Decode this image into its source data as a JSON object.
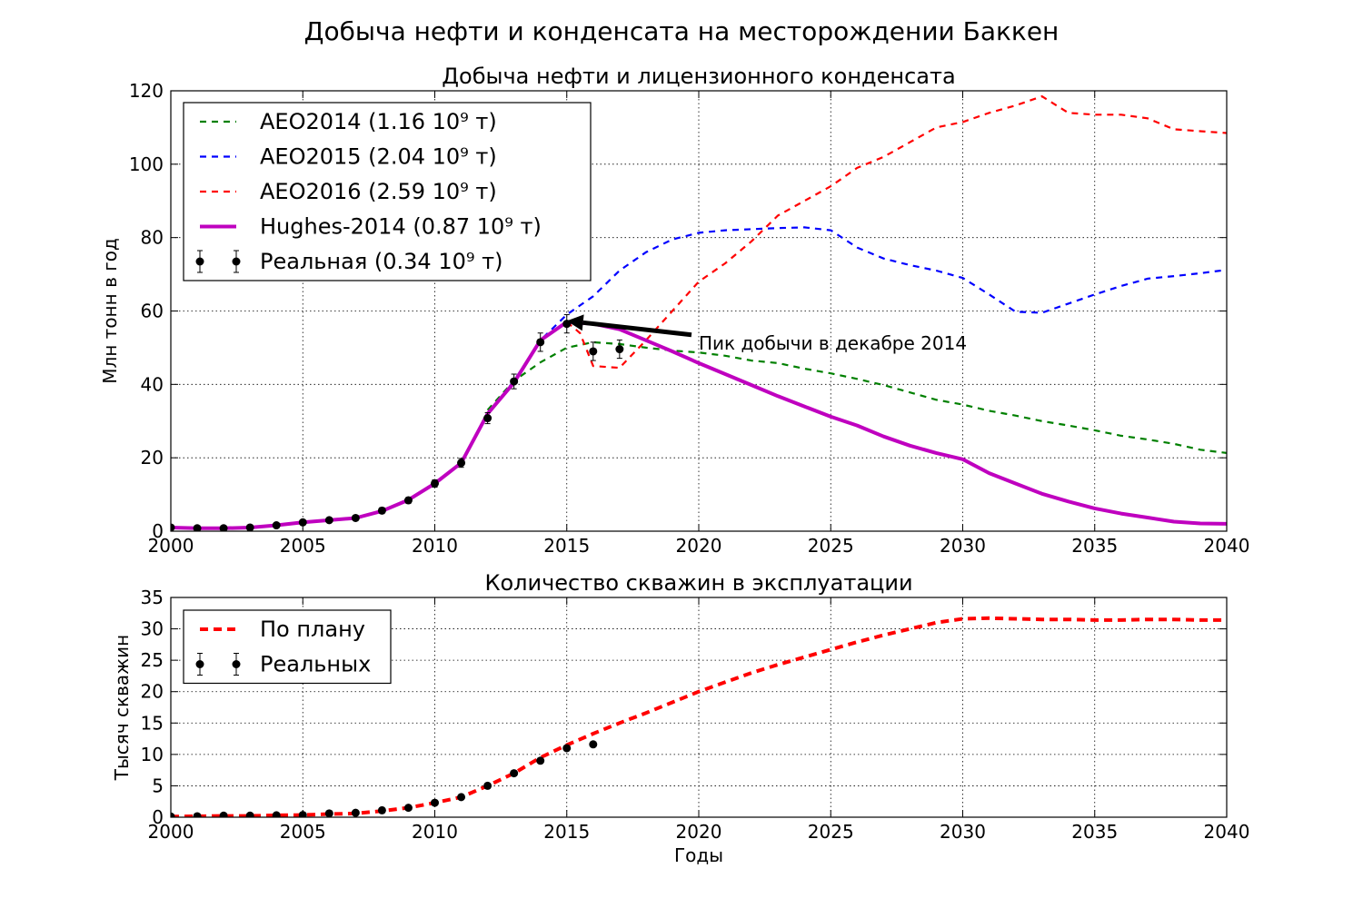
{
  "figure": {
    "suptitle": "Добыча нефти и конденсата на месторождении Баккен"
  },
  "chart_data": [
    {
      "type": "line",
      "title": "Добыча нефти и лицензионного конденсата",
      "xlabel": "",
      "ylabel": "Млн тонн в год",
      "xlim": [
        2000,
        2040
      ],
      "ylim": [
        0,
        120
      ],
      "xticks": [
        2000,
        2005,
        2010,
        2015,
        2020,
        2025,
        2030,
        2035,
        2040
      ],
      "yticks": [
        0,
        20,
        40,
        60,
        80,
        100,
        120
      ],
      "grid": true,
      "legend_position": "top-left",
      "series": [
        {
          "name": "AEO2014 (1.16 10⁹ т)",
          "style": "dashed",
          "color": "#008000",
          "x": [
            2012,
            2013,
            2014,
            2015,
            2016,
            2017,
            2018,
            2019,
            2020,
            2021,
            2022,
            2023,
            2024,
            2025,
            2026,
            2027,
            2028,
            2029,
            2030,
            2031,
            2032,
            2033,
            2034,
            2035,
            2036,
            2037,
            2038,
            2039,
            2040
          ],
          "y": [
            33,
            41,
            46,
            50,
            51.5,
            51,
            50,
            49.2,
            48.7,
            47.8,
            46.5,
            45.8,
            44.3,
            43,
            41.5,
            39.8,
            37.8,
            35.8,
            34.5,
            32.8,
            31.5,
            30,
            28.8,
            27.5,
            26,
            25,
            23.8,
            22.2,
            21.3
          ]
        },
        {
          "name": "AEO2015 (2.04 10⁹ т)",
          "style": "dashed",
          "color": "#0000ff",
          "x": [
            2012,
            2013,
            2014,
            2015,
            2016,
            2017,
            2018,
            2019,
            2020,
            2021,
            2022,
            2023,
            2024,
            2025,
            2026,
            2027,
            2028,
            2029,
            2030,
            2031,
            2032,
            2033,
            2034,
            2035,
            2036,
            2037,
            2038,
            2039,
            2040
          ],
          "y": [
            32,
            41,
            52,
            59,
            64,
            71,
            76,
            79.5,
            81.3,
            82,
            82.3,
            82.6,
            82.8,
            82,
            77.3,
            74.3,
            72.5,
            71,
            69,
            64.5,
            59.8,
            59.5,
            62,
            64.5,
            66.8,
            68.8,
            69.5,
            70.3,
            71.2
          ]
        },
        {
          "name": "AEO2016 (2.59 10⁹ т)",
          "style": "dashed",
          "color": "#ff0000",
          "x": [
            2015,
            2015.5,
            2016,
            2017,
            2018,
            2019,
            2020,
            2021,
            2022,
            2023,
            2024,
            2025,
            2026,
            2027,
            2028,
            2029,
            2030,
            2031,
            2032,
            2033,
            2034,
            2035,
            2036,
            2037,
            2038,
            2039,
            2040
          ],
          "y": [
            57,
            54,
            45,
            44.5,
            52,
            60,
            68,
            73,
            79,
            86,
            90,
            94,
            99,
            102,
            106,
            110,
            111.5,
            114,
            116,
            118.5,
            114,
            113.5,
            113.5,
            112.5,
            109.5,
            109,
            108.5
          ]
        },
        {
          "name": "Hughes-2014 (0.87 10⁹ т)",
          "style": "solid",
          "color": "#bf00bf",
          "x": [
            2000,
            2001,
            2002,
            2003,
            2004,
            2005,
            2006,
            2007,
            2008,
            2009,
            2010,
            2011,
            2012,
            2013,
            2014,
            2015,
            2016,
            2017,
            2018,
            2019,
            2020,
            2021,
            2022,
            2023,
            2024,
            2025,
            2026,
            2027,
            2028,
            2029,
            2030,
            2031,
            2032,
            2033,
            2034,
            2035,
            2036,
            2037,
            2038,
            2039,
            2040
          ],
          "y": [
            1,
            0.8,
            0.8,
            1,
            1.6,
            2.4,
            3,
            3.6,
            5.5,
            8.5,
            13,
            18.6,
            32,
            40.5,
            52,
            57,
            56.5,
            55,
            52,
            49,
            45.8,
            42.8,
            39.8,
            36.8,
            34,
            31.2,
            28.8,
            25.8,
            23.3,
            21.3,
            19.6,
            15.8,
            13,
            10.2,
            8.1,
            6.2,
            4.8,
            3.7,
            2.6,
            2.1,
            2
          ]
        },
        {
          "name": "Реальная (0.34 10⁹ т)",
          "style": "errorbar",
          "color": "#000000",
          "x": [
            2000,
            2001,
            2002,
            2003,
            2004,
            2005,
            2006,
            2007,
            2008,
            2009,
            2010,
            2011,
            2012,
            2013,
            2014,
            2015,
            2016,
            2017
          ],
          "y": [
            1,
            0.8,
            0.8,
            1,
            1.6,
            2.4,
            3,
            3.6,
            5.6,
            8.4,
            13,
            18.6,
            30.8,
            40.8,
            51.5,
            56.5,
            49,
            49.6
          ],
          "yerr": [
            0.3,
            0.3,
            0.3,
            0.3,
            0.4,
            0.5,
            0.6,
            0.6,
            0.8,
            0.8,
            1,
            1.2,
            1.5,
            2,
            2.5,
            2.5,
            2.5,
            2.5
          ]
        }
      ],
      "annotations": [
        {
          "text": "Пик добычи в декабре 2014",
          "xy": [
            2015,
            57.3
          ],
          "xytext": [
            2020,
            53.5
          ]
        }
      ]
    },
    {
      "type": "line",
      "title": "Количество скважин в эксплуатации",
      "xlabel": "Годы",
      "ylabel": "Тысяч скважин",
      "xlim": [
        2000,
        2040
      ],
      "ylim": [
        0,
        35
      ],
      "xticks": [
        2000,
        2005,
        2010,
        2015,
        2020,
        2025,
        2030,
        2035,
        2040
      ],
      "yticks": [
        0,
        5,
        10,
        15,
        20,
        25,
        30,
        35
      ],
      "grid": true,
      "legend_position": "top-left",
      "series": [
        {
          "name": "По плану",
          "style": "dashed",
          "color": "#ff0000",
          "x": [
            2000,
            2001,
            2002,
            2003,
            2004,
            2005,
            2006,
            2007,
            2008,
            2009,
            2010,
            2011,
            2012,
            2013,
            2014,
            2015,
            2016,
            2017,
            2018,
            2019,
            2020,
            2021,
            2022,
            2023,
            2024,
            2025,
            2026,
            2027,
            2028,
            2029,
            2030,
            2031,
            2032,
            2033,
            2034,
            2035,
            2036,
            2037,
            2038,
            2039,
            2040
          ],
          "y": [
            0.1,
            0.15,
            0.2,
            0.2,
            0.3,
            0.35,
            0.5,
            0.6,
            1,
            1.5,
            2.3,
            3.2,
            5,
            7,
            9.5,
            11.5,
            13.3,
            15,
            16.6,
            18.3,
            20,
            21.5,
            23,
            24.3,
            25.5,
            26.7,
            27.9,
            29,
            30,
            31,
            31.6,
            31.7,
            31.6,
            31.5,
            31.5,
            31.4,
            31.4,
            31.5,
            31.5,
            31.4,
            31.4
          ]
        },
        {
          "name": "Реальных",
          "style": "errorbar",
          "color": "#000000",
          "x": [
            2000,
            2001,
            2002,
            2003,
            2004,
            2005,
            2006,
            2007,
            2008,
            2009,
            2010,
            2011,
            2012,
            2013,
            2014,
            2015,
            2016
          ],
          "y": [
            0.1,
            0.15,
            0.25,
            0.25,
            0.3,
            0.35,
            0.6,
            0.7,
            1.1,
            1.5,
            2.3,
            3.2,
            5,
            7,
            9,
            11,
            11.6
          ]
        }
      ]
    }
  ]
}
